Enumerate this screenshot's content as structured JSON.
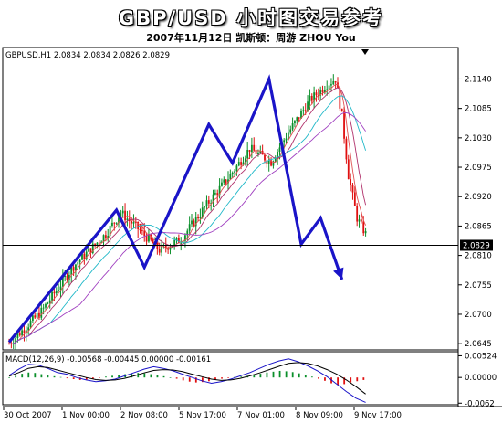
{
  "header": {
    "title": "GBP/USD 小时图交易参考",
    "subtitle": "2007年11月12日  凯斯顿：周游 ZHOU You"
  },
  "chart_data": [
    {
      "type": "candlestick",
      "title": "GBPUSD,H1  2.0834 2.0834 2.0826 2.0829",
      "symbol": "GBPUSD",
      "timeframe": "H1",
      "ohlc_label": "2.0834 2.0834 2.0826 2.0829",
      "x_labels": [
        "30 Oct 2007",
        "1 Nov 00:00",
        "2 Nov 08:00",
        "5 Nov 17:00",
        "7 Nov 01:00",
        "8 Nov 09:00",
        "9 Nov 17:00"
      ],
      "y_ticks": [
        "2.1140",
        "2.1085",
        "2.1030",
        "2.0975",
        "2.0920",
        "2.0865",
        "2.0810",
        "2.0755",
        "2.0700",
        "2.0645"
      ],
      "ylim": [
        2.0635,
        2.1175
      ],
      "current_price": "2.0829",
      "price_path": [
        [
          0,
          2.0645
        ],
        [
          15,
          2.0705
        ],
        [
          30,
          2.079
        ],
        [
          45,
          2.085
        ],
        [
          52,
          2.089
        ],
        [
          60,
          2.086
        ],
        [
          70,
          2.082
        ],
        [
          80,
          2.084
        ],
        [
          92,
          2.0905
        ],
        [
          103,
          2.096
        ],
        [
          112,
          2.101
        ],
        [
          122,
          2.0985
        ],
        [
          130,
          2.104
        ],
        [
          140,
          2.11
        ],
        [
          148,
          2.113
        ],
        [
          152,
          2.114
        ],
        [
          155,
          2.107
        ],
        [
          158,
          2.096
        ],
        [
          162,
          2.088
        ],
        [
          166,
          2.085
        ]
      ],
      "wave_path": [
        [
          0,
          2.0648
        ],
        [
          50,
          2.0895
        ],
        [
          63,
          2.0788
        ],
        [
          93,
          2.1055
        ],
        [
          104,
          2.0983
        ],
        [
          121,
          2.114
        ],
        [
          136,
          2.0831
        ],
        [
          145,
          2.088
        ],
        [
          155,
          2.0765
        ]
      ],
      "colors": {
        "up": "#0a8f2a",
        "down": "#e01010",
        "wave": "#1a14c8",
        "ma_fast": "#e05050",
        "ma_mid": "#b0306a",
        "ma_slow": "#a040c0",
        "ma_cyan": "#20b8c8"
      }
    },
    {
      "type": "bar",
      "title": "MACD(12,26,9) -0.00568 -0.00445 0.00000 -0.00161",
      "y_ticks": [
        "0.00524",
        "0.00000",
        "-0.0062"
      ],
      "ylim": [
        -0.0068,
        0.006
      ],
      "histogram": [
        0.0,
        0.0004,
        0.0009,
        0.0012,
        0.0011,
        0.0008,
        0.0005,
        0.0003,
        0.0001,
        -0.0002,
        -0.0004,
        -0.0006,
        -0.0005,
        -0.0003,
        -0.0001,
        0.0002,
        0.0004,
        0.0006,
        0.0008,
        0.001,
        0.0011,
        0.001,
        0.0008,
        0.0005,
        0.0003,
        0.0,
        -0.0003,
        -0.0007,
        -0.001,
        -0.0012,
        -0.0011,
        -0.0009,
        -0.0006,
        -0.0003,
        -0.0001,
        0.0001,
        0.0002,
        0.0004,
        0.0006,
        0.0009,
        0.0012,
        0.0014,
        0.0016,
        0.0015,
        0.0013,
        0.001,
        0.0006,
        0.0002,
        -0.0003,
        -0.0008,
        -0.0014,
        -0.0018,
        -0.0016,
        -0.0012,
        -0.0009,
        -0.0006
      ],
      "macd_line": [
        0.0005,
        0.002,
        0.0032,
        0.003,
        0.0022,
        0.0012,
        0.0008,
        0.0,
        -0.0006,
        -0.001,
        -0.0008,
        -0.0004,
        0.0004,
        0.0012,
        0.002,
        0.0026,
        0.0022,
        0.0016,
        0.0008,
        0.0,
        -0.0008,
        -0.0014,
        -0.001,
        -0.0004,
        0.0004,
        0.0012,
        0.0022,
        0.0032,
        0.004,
        0.0045,
        0.0038,
        0.0028,
        0.0016,
        0.0002,
        -0.0016,
        -0.0034,
        -0.005,
        -0.006
      ],
      "signal_line": [
        0.0003,
        0.0012,
        0.0022,
        0.0026,
        0.0024,
        0.0018,
        0.0012,
        0.0006,
        0.0,
        -0.0005,
        -0.0007,
        -0.0006,
        -0.0002,
        0.0004,
        0.0011,
        0.0017,
        0.0019,
        0.0018,
        0.0014,
        0.0008,
        0.0002,
        -0.0004,
        -0.0007,
        -0.0006,
        -0.0002,
        0.0004,
        0.0011,
        0.0019,
        0.0027,
        0.0034,
        0.0036,
        0.0034,
        0.0028,
        0.0019,
        0.0008,
        -0.0006,
        -0.0022,
        -0.004
      ],
      "colors": {
        "hist_up": "#0a8f2a",
        "hist_down": "#e01010",
        "macd": "#1a14c8",
        "signal": "#000000"
      }
    }
  ]
}
